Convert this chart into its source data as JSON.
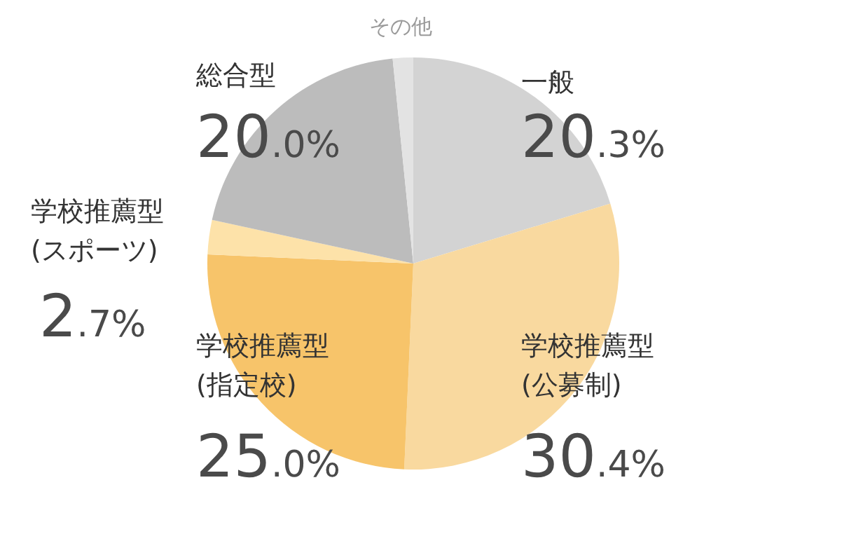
{
  "chart_data": {
    "type": "pie",
    "categories": [
      "一般",
      "学校推薦型\n(公募制)",
      "学校推薦型\n(指定校)",
      "学校推薦型\n(スポーツ)",
      "総合型",
      "その他"
    ],
    "values": [
      20.3,
      30.4,
      25.0,
      2.7,
      20.0,
      1.6
    ],
    "value_labels": [
      "20.3%",
      "30.4%",
      "25.0%",
      "2.7%",
      "20.0%",
      null
    ],
    "colors": [
      "#d3d3d3",
      "#f9d99f",
      "#f7c46a",
      "#fde2a9",
      "#bcbcbc",
      "#e3e3e3"
    ]
  }
}
